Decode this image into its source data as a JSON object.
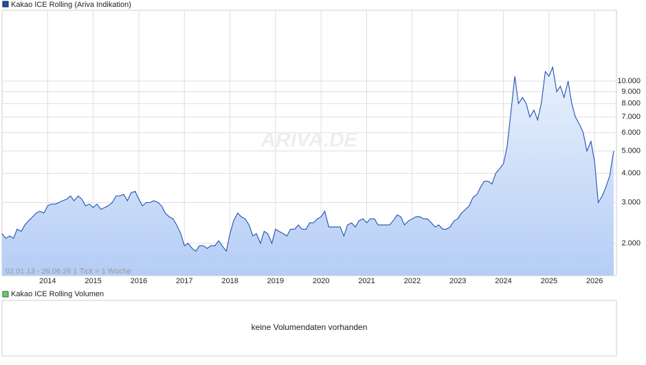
{
  "chart_data": {
    "type": "area",
    "title": "Kakao ICE Rolling (Ariva Indikation)",
    "subtitle": "02.01.13 - 26.06.26   1 Tick = 1 Woche",
    "watermark": "ARIVA.DE",
    "log_scale": true,
    "grid": true,
    "legend_position": "top-left",
    "xlim": [
      2013.0,
      2026.48
    ],
    "xticks": [
      2014,
      2015,
      2016,
      2017,
      2018,
      2019,
      2020,
      2021,
      2022,
      2023,
      2024,
      2025,
      2026
    ],
    "ylim": [
      1450,
      20200
    ],
    "yticks": [
      {
        "value": 2000,
        "label": "2.000"
      },
      {
        "value": 3000,
        "label": "3.000"
      },
      {
        "value": 4000,
        "label": "4.000"
      },
      {
        "value": 5000,
        "label": "5.000"
      },
      {
        "value": 6000,
        "label": "6.000"
      },
      {
        "value": 7000,
        "label": "7.000"
      },
      {
        "value": 8000,
        "label": "8.000"
      },
      {
        "value": 9000,
        "label": "9.000"
      },
      {
        "value": 10000,
        "label": "10.000"
      }
    ],
    "x": [
      2013.0,
      2013.08,
      2013.17,
      2013.25,
      2013.33,
      2013.42,
      2013.5,
      2013.58,
      2013.67,
      2013.75,
      2013.83,
      2013.92,
      2014.0,
      2014.08,
      2014.17,
      2014.25,
      2014.33,
      2014.42,
      2014.5,
      2014.58,
      2014.67,
      2014.75,
      2014.83,
      2014.92,
      2015.0,
      2015.08,
      2015.17,
      2015.25,
      2015.33,
      2015.42,
      2015.5,
      2015.58,
      2015.67,
      2015.75,
      2015.83,
      2015.92,
      2016.0,
      2016.08,
      2016.17,
      2016.25,
      2016.33,
      2016.42,
      2016.5,
      2016.58,
      2016.67,
      2016.75,
      2016.83,
      2016.92,
      2017.0,
      2017.08,
      2017.17,
      2017.25,
      2017.33,
      2017.42,
      2017.5,
      2017.58,
      2017.67,
      2017.75,
      2017.83,
      2017.92,
      2018.0,
      2018.08,
      2018.17,
      2018.25,
      2018.33,
      2018.42,
      2018.5,
      2018.58,
      2018.67,
      2018.75,
      2018.83,
      2018.92,
      2019.0,
      2019.08,
      2019.17,
      2019.25,
      2019.33,
      2019.42,
      2019.5,
      2019.58,
      2019.67,
      2019.75,
      2019.83,
      2019.92,
      2020.0,
      2020.08,
      2020.17,
      2020.25,
      2020.33,
      2020.42,
      2020.5,
      2020.58,
      2020.67,
      2020.75,
      2020.83,
      2020.92,
      2021.0,
      2021.08,
      2021.17,
      2021.25,
      2021.33,
      2021.42,
      2021.5,
      2021.58,
      2021.67,
      2021.75,
      2021.83,
      2021.92,
      2022.0,
      2022.08,
      2022.17,
      2022.25,
      2022.33,
      2022.42,
      2022.5,
      2022.58,
      2022.67,
      2022.75,
      2022.83,
      2022.92,
      2023.0,
      2023.08,
      2023.17,
      2023.25,
      2023.33,
      2023.42,
      2023.5,
      2023.58,
      2023.67,
      2023.75,
      2023.83,
      2023.92,
      2024.0,
      2024.08,
      2024.17,
      2024.25,
      2024.33,
      2024.42,
      2024.5,
      2024.58,
      2024.67,
      2024.75,
      2024.83,
      2024.92,
      2025.0,
      2025.08,
      2025.17,
      2025.25,
      2025.33,
      2025.42,
      2025.5,
      2025.58,
      2025.67,
      2025.75,
      2025.83,
      2025.92,
      2026.0,
      2026.08,
      2026.17,
      2026.25,
      2026.33,
      2026.42
    ],
    "series": [
      {
        "name": "Kakao ICE Rolling (Ariva Indikation)",
        "color": "#1f4fb4",
        "values": [
          2200,
          2100,
          2150,
          2100,
          2300,
          2250,
          2400,
          2500,
          2600,
          2700,
          2750,
          2700,
          2900,
          2950,
          2950,
          3000,
          3050,
          3100,
          3200,
          3050,
          3200,
          3100,
          2900,
          2950,
          2850,
          2950,
          2800,
          2850,
          2900,
          3000,
          3200,
          3200,
          3250,
          3050,
          3300,
          3350,
          3100,
          2900,
          3000,
          3000,
          3050,
          3000,
          2900,
          2700,
          2600,
          2550,
          2400,
          2200,
          1950,
          2000,
          1900,
          1850,
          1950,
          1950,
          1900,
          1950,
          1950,
          2050,
          1950,
          1850,
          2200,
          2500,
          2700,
          2600,
          2550,
          2400,
          2150,
          2200,
          2000,
          2250,
          2200,
          2000,
          2300,
          2250,
          2200,
          2150,
          2300,
          2300,
          2400,
          2300,
          2300,
          2450,
          2450,
          2550,
          2600,
          2750,
          2350,
          2350,
          2350,
          2350,
          2150,
          2400,
          2450,
          2350,
          2500,
          2550,
          2450,
          2550,
          2550,
          2400,
          2400,
          2400,
          2400,
          2500,
          2650,
          2600,
          2400,
          2500,
          2550,
          2600,
          2600,
          2550,
          2550,
          2450,
          2350,
          2400,
          2300,
          2300,
          2350,
          2500,
          2550,
          2700,
          2800,
          2900,
          3150,
          3250,
          3500,
          3700,
          3700,
          3600,
          4000,
          4200,
          4400,
          5200,
          7500,
          10500,
          8000,
          8500,
          8000,
          7000,
          7500,
          6800,
          8000,
          11000,
          10500,
          11500,
          9000,
          9500,
          8500,
          10000,
          8000,
          7000,
          6500,
          6000,
          5000,
          5500,
          4500,
          3000,
          3200,
          3500,
          3900,
          5000
        ]
      }
    ],
    "volume_panel": {
      "title": "Kakao ICE Rolling Volumen",
      "message": "keine Volumendaten vorhanden"
    }
  }
}
